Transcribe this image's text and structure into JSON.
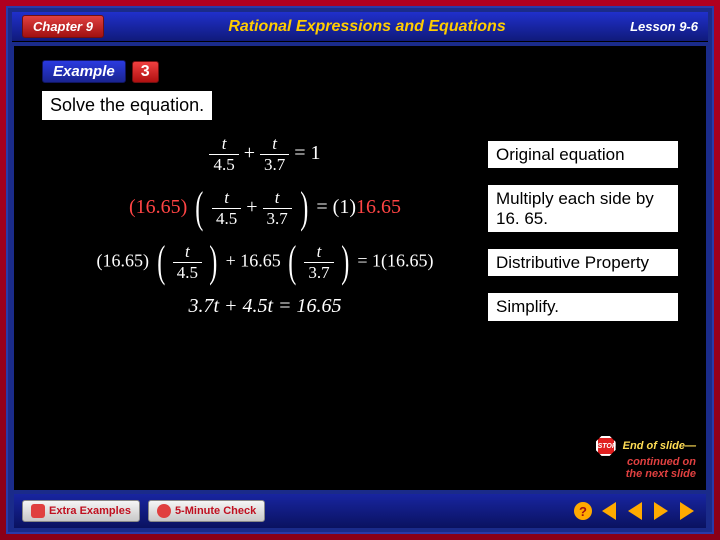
{
  "header": {
    "chapter": "Chapter 9",
    "title": "Rational Expressions and Equations",
    "lesson": "Lesson 9-6"
  },
  "example": {
    "label": "Example",
    "number": "3",
    "instruction": "Solve the equation."
  },
  "steps": [
    {
      "label": "Original equation"
    },
    {
      "label": "Multiply each side by 16. 65."
    },
    {
      "label": "Distributive Property"
    },
    {
      "label": "Simplify."
    }
  ],
  "equations": {
    "eq1": {
      "num1": "t",
      "den1": "4.5",
      "num2": "t",
      "den2": "3.7",
      "rhs": "1"
    },
    "eq2": {
      "mult": "16.65",
      "num1": "t",
      "den1": "4.5",
      "num2": "t",
      "den2": "3.7",
      "rhs_a": "1",
      "rhs_mult": "16.65"
    },
    "eq3": {
      "mult": "16.65",
      "num1": "t",
      "den1": "4.5",
      "num2": "t",
      "den2": "3.7",
      "rhs_a": "1",
      "rhs_mult": "16.65"
    },
    "eq4": {
      "lhs": "3.7t + 4.5t = 16.65"
    }
  },
  "footer": {
    "btn1": "Extra Examples",
    "btn2": "5-Minute Check"
  },
  "endnote": {
    "line1": "End of slide—",
    "line2": "continued on",
    "line3": "the next slide",
    "stop": "STOP"
  },
  "colors": {
    "highlight": "#ff4444",
    "accent": "#ffcc00",
    "red_grad_top": "#e04040",
    "blue_grad_top": "#2030cc"
  }
}
